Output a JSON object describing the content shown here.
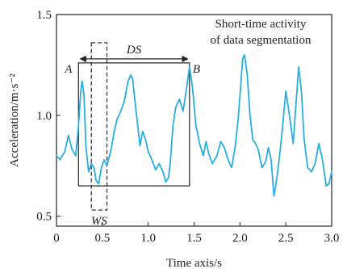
{
  "chart_data": {
    "type": "line",
    "xlabel": "Time axis/s",
    "ylabel": "Acceleration/m·s⁻²",
    "xlim": [
      0,
      3.0
    ],
    "ylim": [
      0.45,
      1.5
    ],
    "x_ticks": [
      "0",
      "0.5",
      "1.0",
      "1.5",
      "2.0",
      "2.5",
      "3.0"
    ],
    "x_tick_values": [
      0,
      0.5,
      1.0,
      1.5,
      2.0,
      2.5,
      3.0
    ],
    "y_ticks": [
      "0.5",
      "1.0",
      "1.5"
    ],
    "y_tick_values": [
      0.5,
      1.0,
      1.5
    ],
    "grid": false,
    "line_color": "#29aee0",
    "series": [
      {
        "x": [
          0.0,
          0.04,
          0.09,
          0.13,
          0.17,
          0.21,
          0.24,
          0.265,
          0.28,
          0.3,
          0.32,
          0.35,
          0.38,
          0.41,
          0.43,
          0.46,
          0.49,
          0.52,
          0.55,
          0.59,
          0.63,
          0.66,
          0.7,
          0.74,
          0.78,
          0.81,
          0.83,
          0.86,
          0.89,
          0.91,
          0.94,
          0.97,
          1.0,
          1.04,
          1.08,
          1.12,
          1.16,
          1.19,
          1.22,
          1.24,
          1.27,
          1.3,
          1.34,
          1.38,
          1.42,
          1.45,
          1.48,
          1.52,
          1.56,
          1.6,
          1.63,
          1.66,
          1.7,
          1.75,
          1.79,
          1.83,
          1.87,
          1.91,
          1.95,
          1.98,
          2.01,
          2.03,
          2.05,
          2.08,
          2.11,
          2.14,
          2.17,
          2.2,
          2.24,
          2.28,
          2.31,
          2.34,
          2.37,
          2.4,
          2.43,
          2.46,
          2.5,
          2.54,
          2.58,
          2.61,
          2.64,
          2.67,
          2.7,
          2.74,
          2.78,
          2.82,
          2.86,
          2.9,
          2.94,
          2.97,
          3.0
        ],
        "y": [
          0.8,
          0.78,
          0.82,
          0.9,
          0.83,
          0.8,
          0.95,
          1.12,
          1.17,
          1.1,
          0.85,
          0.72,
          0.76,
          0.74,
          0.68,
          0.66,
          0.74,
          0.78,
          0.75,
          0.82,
          0.92,
          0.98,
          1.02,
          1.07,
          1.17,
          1.2,
          1.18,
          1.05,
          0.93,
          0.85,
          0.92,
          0.88,
          0.82,
          0.78,
          0.73,
          0.76,
          0.72,
          0.67,
          0.69,
          0.76,
          0.95,
          1.04,
          1.08,
          1.02,
          1.14,
          1.24,
          1.15,
          0.95,
          0.86,
          0.8,
          0.87,
          0.81,
          0.76,
          0.8,
          0.87,
          0.84,
          0.78,
          0.74,
          0.85,
          0.98,
          1.16,
          1.28,
          1.3,
          1.2,
          1.0,
          0.88,
          0.86,
          0.83,
          0.74,
          0.77,
          0.84,
          0.78,
          0.6,
          0.68,
          0.79,
          0.92,
          1.12,
          1.0,
          0.86,
          1.05,
          1.24,
          1.12,
          0.88,
          0.74,
          0.72,
          0.76,
          0.86,
          0.78,
          0.65,
          0.66,
          0.72
        ]
      }
    ],
    "annotations": {
      "text_line1": "Short-time activity",
      "text_line2": "of data segmentation",
      "label_a": "A",
      "label_b": "B",
      "label_ds": "DS",
      "label_ws": "WS",
      "ds_box": {
        "x0": 0.24,
        "x1": 1.45,
        "y0": 0.65,
        "y1": 1.26
      },
      "ws_box": {
        "x0": 0.38,
        "x1": 0.55,
        "y0": 0.53,
        "y1": 1.36
      },
      "ds_arrow_y": 1.28
    }
  }
}
